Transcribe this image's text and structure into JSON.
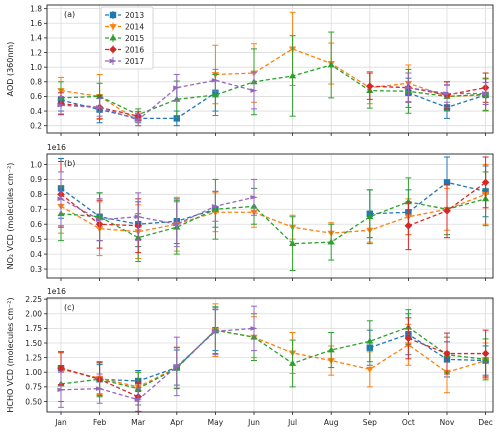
{
  "chart_data": [
    {
      "type": "line",
      "panel_label": "(a)",
      "ylabel": "AOD (360nm)",
      "offset_label": "",
      "categories": [
        "Jan",
        "Feb",
        "Mar",
        "Apr",
        "May",
        "Jun",
        "Jul",
        "Aug",
        "Sep",
        "Oct",
        "Nov",
        "Dec"
      ],
      "yticks": [
        0.2,
        0.4,
        0.6,
        0.8,
        1.0,
        1.2,
        1.4,
        1.6,
        1.8
      ],
      "ytick_labels": [
        "0.2",
        "0.4",
        "0.6",
        "0.8",
        "1.0",
        "1.2",
        "1.4",
        "1.6",
        "1.8"
      ],
      "ylim": [
        0.1,
        1.85
      ],
      "grid": true,
      "legend": {
        "placement": "top-left",
        "entries": [
          "2013",
          "2014",
          "2015",
          "2016",
          "2017"
        ]
      },
      "series": [
        {
          "name": "2013",
          "color": "#1f77b4",
          "values": [
            0.55,
            0.42,
            0.3,
            0.3,
            0.65,
            null,
            null,
            null,
            null,
            0.65,
            0.45,
            0.62
          ],
          "errors": [
            0.15,
            0.18,
            0.06,
            0.1,
            0.25,
            null,
            null,
            null,
            null,
            0.2,
            0.15,
            0.22
          ]
        },
        {
          "name": "2014",
          "color": "#ff7f0e",
          "values": [
            0.68,
            0.6,
            0.27,
            null,
            0.9,
            0.92,
            1.25,
            1.05,
            0.72,
            0.78,
            0.6,
            0.62
          ],
          "errors": [
            0.18,
            0.3,
            0.07,
            null,
            0.4,
            0.4,
            0.5,
            0.28,
            0.22,
            0.25,
            0.15,
            0.22
          ]
        },
        {
          "name": "2015",
          "color": "#2ca02c",
          "values": [
            0.58,
            0.6,
            0.35,
            0.56,
            0.62,
            0.8,
            0.88,
            1.03,
            0.68,
            0.67,
            0.6,
            0.63
          ],
          "errors": [
            0.22,
            0.18,
            0.08,
            0.25,
            0.28,
            0.45,
            0.55,
            0.45,
            0.24,
            0.3,
            0.2,
            0.22
          ]
        },
        {
          "name": "2016",
          "color": "#d62728",
          "values": [
            0.5,
            0.45,
            0.33,
            null,
            null,
            null,
            null,
            null,
            0.74,
            0.72,
            0.62,
            0.72
          ],
          "errors": [
            0.15,
            0.16,
            0.06,
            null,
            null,
            null,
            null,
            null,
            0.18,
            0.2,
            0.18,
            0.2
          ]
        },
        {
          "name": "2017",
          "color": "#9467bd",
          "values": [
            0.48,
            0.45,
            0.28,
            0.72,
            0.82,
            0.68,
            null,
            null,
            null,
            0.72,
            0.64,
            0.64
          ],
          "errors": [
            0.12,
            0.12,
            0.08,
            0.18,
            0.15,
            0.25,
            null,
            null,
            null,
            0.2,
            0.12,
            0.15
          ]
        }
      ]
    },
    {
      "type": "line",
      "panel_label": "(b)",
      "ylabel": "NO₂ VCD (molecules cm⁻²)",
      "offset_label": "1e16",
      "categories": [
        "Jan",
        "Feb",
        "Mar",
        "Apr",
        "May",
        "Jun",
        "Jul",
        "Aug",
        "Sep",
        "Oct",
        "Nov",
        "Dec"
      ],
      "yticks": [
        0.3,
        0.4,
        0.5,
        0.6,
        0.7,
        0.8,
        0.9,
        1.0
      ],
      "ytick_labels": [
        "0.3",
        "0.4",
        "0.5",
        "0.6",
        "0.7",
        "0.8",
        "0.9",
        "1.0"
      ],
      "ylim": [
        0.24,
        1.07
      ],
      "grid": true,
      "series": [
        {
          "name": "2013",
          "color": "#1f77b4",
          "values": [
            0.84,
            0.65,
            0.6,
            0.62,
            0.7,
            null,
            null,
            null,
            0.67,
            0.68,
            0.88,
            0.82
          ],
          "errors": [
            0.2,
            0.16,
            0.15,
            0.15,
            0.12,
            null,
            null,
            null,
            0.16,
            0.15,
            0.17,
            0.17
          ]
        },
        {
          "name": "2014",
          "color": "#ff7f0e",
          "values": [
            0.72,
            0.57,
            0.55,
            0.6,
            0.68,
            0.68,
            0.58,
            0.54,
            0.56,
            0.65,
            0.7,
            0.8
          ],
          "errors": [
            0.18,
            0.18,
            0.18,
            0.18,
            0.13,
            0.1,
            0.08,
            0.07,
            0.08,
            0.12,
            0.14,
            0.2
          ]
        },
        {
          "name": "2015",
          "color": "#2ca02c",
          "values": [
            0.67,
            0.65,
            0.51,
            0.58,
            0.7,
            0.72,
            0.47,
            0.48,
            0.65,
            0.75,
            0.7,
            0.77
          ],
          "errors": [
            0.18,
            0.16,
            0.16,
            0.18,
            0.2,
            0.12,
            0.18,
            0.12,
            0.18,
            0.16,
            0.17,
            0.18
          ]
        },
        {
          "name": "2016",
          "color": "#d62728",
          "values": [
            0.8,
            0.6,
            0.59,
            null,
            null,
            null,
            null,
            null,
            null,
            0.59,
            0.69,
            0.88
          ],
          "errors": [
            0.22,
            0.16,
            0.18,
            null,
            null,
            null,
            null,
            null,
            null,
            0.16,
            0.18,
            0.17
          ]
        },
        {
          "name": "2017",
          "color": "#9467bd",
          "values": [
            0.77,
            0.63,
            0.65,
            0.6,
            0.72,
            0.78,
            null,
            null,
            null,
            null,
            null,
            null
          ],
          "errors": [
            0.18,
            0.14,
            0.16,
            0.15,
            0.1,
            0.12,
            null,
            null,
            null,
            null,
            null,
            null
          ]
        }
      ]
    },
    {
      "type": "line",
      "panel_label": "(c)",
      "ylabel": "HCHO VCD (molecules cm⁻²)",
      "offset_label": "1e16",
      "categories": [
        "Jan",
        "Feb",
        "Mar",
        "Apr",
        "May",
        "Jun",
        "Jul",
        "Aug",
        "Sep",
        "Oct",
        "Nov",
        "Dec"
      ],
      "yticks": [
        0.5,
        0.75,
        1.0,
        1.25,
        1.5,
        1.75,
        2.0,
        2.25
      ],
      "ytick_labels": [
        "0.50",
        "0.75",
        "1.00",
        "1.25",
        "1.50",
        "1.75",
        "2.00",
        "2.25"
      ],
      "ylim": [
        0.32,
        2.27
      ],
      "grid": true,
      "series": [
        {
          "name": "2013",
          "color": "#1f77b4",
          "values": [
            1.07,
            0.88,
            0.85,
            1.08,
            1.72,
            null,
            null,
            null,
            1.42,
            1.65,
            1.22,
            1.2
          ],
          "errors": [
            0.28,
            0.25,
            0.18,
            0.3,
            0.35,
            null,
            null,
            null,
            0.3,
            0.35,
            0.3,
            0.25
          ]
        },
        {
          "name": "2014",
          "color": "#ff7f0e",
          "values": [
            1.05,
            0.9,
            0.75,
            1.08,
            1.72,
            1.6,
            1.33,
            1.2,
            1.05,
            1.47,
            1.0,
            1.2
          ],
          "errors": [
            0.28,
            0.28,
            0.25,
            0.35,
            0.45,
            0.35,
            0.35,
            0.25,
            0.3,
            0.35,
            0.35,
            0.3
          ]
        },
        {
          "name": "2015",
          "color": "#2ca02c",
          "values": [
            0.8,
            0.88,
            0.72,
            1.07,
            1.72,
            1.6,
            1.15,
            1.38,
            1.53,
            1.77,
            1.3,
            1.22
          ],
          "errors": [
            0.3,
            0.3,
            0.28,
            0.35,
            0.4,
            0.4,
            0.4,
            0.3,
            0.35,
            0.3,
            0.3,
            0.35
          ]
        },
        {
          "name": "2016",
          "color": "#d62728",
          "values": [
            1.07,
            0.88,
            0.58,
            null,
            null,
            null,
            null,
            null,
            null,
            1.58,
            1.32,
            1.32
          ],
          "errors": [
            0.28,
            0.28,
            0.25,
            null,
            null,
            null,
            null,
            null,
            null,
            0.35,
            0.35,
            0.4
          ]
        },
        {
          "name": "2017",
          "color": "#9467bd",
          "values": [
            0.7,
            0.72,
            0.53,
            1.1,
            1.7,
            1.75,
            null,
            null,
            null,
            null,
            null,
            null
          ],
          "errors": [
            0.3,
            0.25,
            0.2,
            0.5,
            0.4,
            0.38,
            null,
            null,
            null,
            null,
            null,
            null
          ]
        }
      ]
    }
  ]
}
